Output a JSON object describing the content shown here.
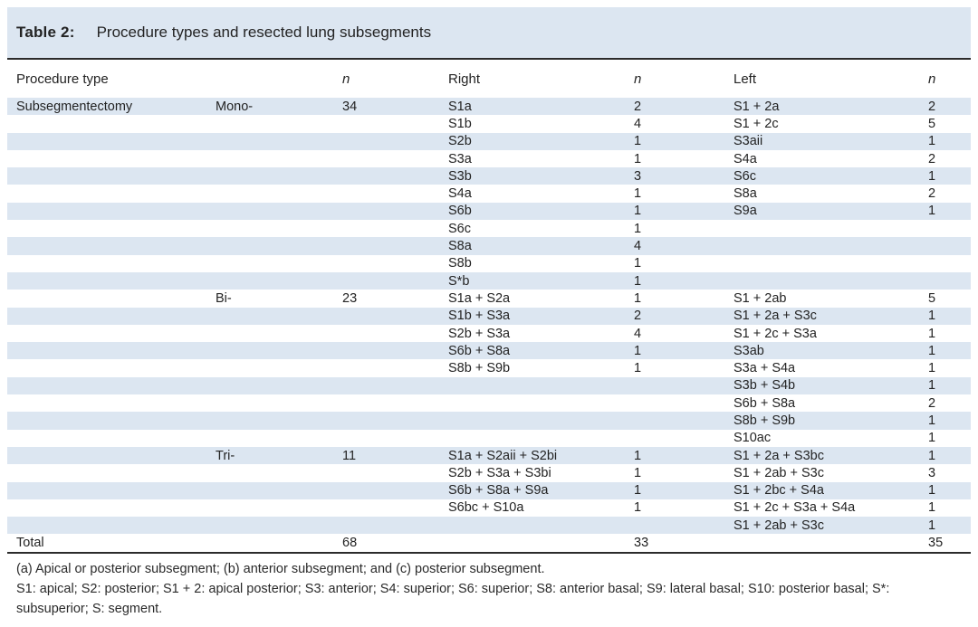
{
  "table": {
    "label": "Table 2:",
    "title": "Procedure types and resected lung subsegments",
    "columns": [
      "Procedure type",
      "",
      "n",
      "Right",
      "n",
      "Left",
      "n"
    ],
    "italic_column_indexes": [
      2,
      4,
      6
    ],
    "rows": [
      [
        "Subsegmentectomy",
        "Mono-",
        "34",
        "S1a",
        "2",
        "S1 + 2a",
        "2"
      ],
      [
        "",
        "",
        "",
        "S1b",
        "4",
        "S1 + 2c",
        "5"
      ],
      [
        "",
        "",
        "",
        "S2b",
        "1",
        "S3aii",
        "1"
      ],
      [
        "",
        "",
        "",
        "S3a",
        "1",
        "S4a",
        "2"
      ],
      [
        "",
        "",
        "",
        "S3b",
        "3",
        "S6c",
        "1"
      ],
      [
        "",
        "",
        "",
        "S4a",
        "1",
        "S8a",
        "2"
      ],
      [
        "",
        "",
        "",
        "S6b",
        "1",
        "S9a",
        "1"
      ],
      [
        "",
        "",
        "",
        "S6c",
        "1",
        "",
        ""
      ],
      [
        "",
        "",
        "",
        "S8a",
        "4",
        "",
        ""
      ],
      [
        "",
        "",
        "",
        "S8b",
        "1",
        "",
        ""
      ],
      [
        "",
        "",
        "",
        "S*b",
        "1",
        "",
        ""
      ],
      [
        "",
        "Bi-",
        "23",
        "S1a + S2a",
        "1",
        "S1 + 2ab",
        "5"
      ],
      [
        "",
        "",
        "",
        "S1b + S3a",
        "2",
        "S1 + 2a + S3c",
        "1"
      ],
      [
        "",
        "",
        "",
        "S2b + S3a",
        "4",
        "S1 + 2c + S3a",
        "1"
      ],
      [
        "",
        "",
        "",
        "S6b + S8a",
        "1",
        "S3ab",
        "1"
      ],
      [
        "",
        "",
        "",
        "S8b + S9b",
        "1",
        "S3a + S4a",
        "1"
      ],
      [
        "",
        "",
        "",
        "",
        "",
        "S3b + S4b",
        "1"
      ],
      [
        "",
        "",
        "",
        "",
        "",
        "S6b + S8a",
        "2"
      ],
      [
        "",
        "",
        "",
        "",
        "",
        "S8b + S9b",
        "1"
      ],
      [
        "",
        "",
        "",
        "",
        "",
        "S10ac",
        "1"
      ],
      [
        "",
        "Tri-",
        "11",
        "S1a + S2aii + S2bi",
        "1",
        "S1 + 2a + S3bc",
        "1"
      ],
      [
        "",
        "",
        "",
        "S2b + S3a + S3bi",
        "1",
        "S1 + 2ab + S3c",
        "3"
      ],
      [
        "",
        "",
        "",
        "S6b + S8a + S9a",
        "1",
        "S1 + 2bc + S4a",
        "1"
      ],
      [
        "",
        "",
        "",
        "S6bc + S10a",
        "1",
        "S1 + 2c + S3a + S4a",
        "1"
      ],
      [
        "",
        "",
        "",
        "",
        "",
        "S1 + 2ab + S3c",
        "1"
      ]
    ],
    "total_row": [
      "Total",
      "",
      "68",
      "",
      "33",
      "",
      "35"
    ]
  },
  "footnotes": [
    "(a) Apical or posterior subsegment; (b) anterior subsegment; and (c) posterior subsegment.",
    "S1: apical; S2: posterior; S1 + 2: apical posterior; S3: anterior; S4: superior; S6: superior; S8: anterior basal; S9: lateral basal; S10: posterior basal; S*: subsuperior; S: segment."
  ],
  "colors": {
    "row_shade": "#dce6f1",
    "title_band": "#dce6f1",
    "rule": "#2b2b2b",
    "text": "#232323"
  }
}
